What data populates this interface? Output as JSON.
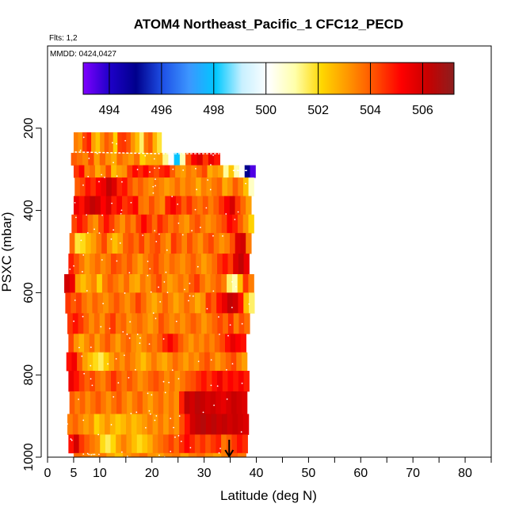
{
  "chart_data": {
    "type": "heatmap",
    "title": "ATOM4 Northeast_Pacific_1 CFC12_PECD",
    "flights_label": "Flts: 1,2",
    "date_label": "MMDD: 0424,0427",
    "xlabel": "Latitude (deg N)",
    "ylabel": "PSXC (mbar)",
    "xlim": [
      0,
      85
    ],
    "ylim": [
      1000,
      0
    ],
    "x_ticks": [
      0,
      5,
      10,
      20,
      30,
      40,
      50,
      60,
      70,
      80
    ],
    "x_minor_ticks": [
      15,
      25,
      35,
      45,
      55,
      65,
      75,
      85
    ],
    "y_ticks": [
      200,
      400,
      600,
      800,
      1000
    ],
    "colorbar": {
      "min": 493,
      "max": 507.2,
      "ticks": [
        494,
        496,
        498,
        500,
        502,
        504,
        506
      ],
      "stops": [
        "#7f00ff",
        "#1e00c8",
        "#00008c",
        "#1e50e6",
        "#3c96ff",
        "#00c8ff",
        "#c8f0ff",
        "#ffffff",
        "#ffffaa",
        "#ffd700",
        "#ff9600",
        "#ff5000",
        "#ff0000",
        "#c80000",
        "#8c1e1e"
      ]
    },
    "marker": {
      "label": "arrow",
      "latitude": 34.8,
      "pressure": 1000
    },
    "layers": [
      {
        "p_top": 210,
        "p_bot": 260,
        "lat_start": 5.0,
        "lat_end": 21.8,
        "values": [
          503.5,
          503.2,
          504.3,
          504.8,
          503.0,
          502.4,
          503.3,
          504.0,
          503.6,
          502.2,
          504.4,
          504.5,
          504.1,
          503.2,
          502.5,
          501.5,
          503.6,
          504.0,
          502.7,
          501.8
        ]
      },
      {
        "p_top": 260,
        "p_bot": 290,
        "lat_start": 4.5,
        "lat_end": 33.0,
        "values": [
          504.0,
          503.7,
          503.4,
          504.3,
          503.0,
          503.9,
          503.2,
          502.8,
          503.8,
          503.4,
          503.1,
          503.7,
          502.2,
          502.8,
          502.9,
          503.0,
          501.3,
          500.0,
          498.0,
          501.0,
          504.2,
          505.3,
          505.8,
          504.5,
          505.5,
          504.9
        ]
      },
      {
        "p_top": 290,
        "p_bot": 320,
        "lat_start": 5.0,
        "lat_end": 39.8,
        "values": [
          504.5,
          505.2,
          503.5,
          503.8,
          502.8,
          503.3,
          504.3,
          502.5,
          503.0,
          503.2,
          504.4,
          505.1,
          504.6,
          505.2,
          504.5,
          504.2,
          504.7,
          505.0,
          504.0,
          503.2,
          503.0,
          503.6,
          503.3,
          503.8,
          504.3,
          502.8,
          503.2,
          502.9,
          501.2,
          502.4,
          501.0,
          500.2,
          495.0,
          493.5
        ]
      },
      {
        "p_top": 320,
        "p_bot": 365,
        "lat_start": 5.2,
        "lat_end": 39.5,
        "values": [
          504.0,
          504.3,
          505.0,
          504.6,
          505.2,
          505.5,
          506.3,
          505.8,
          504.7,
          505.0,
          504.2,
          503.6,
          504.0,
          503.5,
          503.2,
          503.6,
          503.4,
          503.0,
          503.3,
          503.8,
          503.2,
          503.6,
          503.4,
          502.8,
          503.5,
          503.2,
          503.6,
          503.9,
          502.8,
          503.2,
          504.0,
          503.4,
          502.5,
          500.8
        ]
      },
      {
        "p_top": 365,
        "p_bot": 410,
        "lat_start": 5.0,
        "lat_end": 39.0,
        "values": [
          505.5,
          505.0,
          505.8,
          506.3,
          506.0,
          505.2,
          505.8,
          504.8,
          505.3,
          504.5,
          504.8,
          505.2,
          503.7,
          503.5,
          504.2,
          503.6,
          503.3,
          504.8,
          505.3,
          504.7,
          504.0,
          504.6,
          503.9,
          503.6,
          504.1,
          503.5,
          504.0,
          504.6,
          505.3,
          505.9,
          504.5,
          503.8,
          503.0
        ]
      },
      {
        "p_top": 410,
        "p_bot": 455,
        "lat_start": 4.6,
        "lat_end": 39.5,
        "values": [
          504.3,
          505.0,
          504.5,
          503.6,
          503.2,
          504.2,
          505.0,
          504.4,
          503.7,
          503.2,
          504.0,
          503.5,
          504.4,
          505.2,
          504.5,
          503.8,
          504.7,
          504.2,
          503.6,
          504.0,
          503.4,
          503.1,
          503.8,
          504.2,
          503.6,
          503.2,
          503.5,
          503.9,
          504.3,
          505.2,
          504.8,
          504.0,
          503.2,
          502.2
        ]
      },
      {
        "p_top": 455,
        "p_bot": 505,
        "lat_start": 4.2,
        "lat_end": 39.0,
        "values": [
          503.8,
          501.8,
          502.0,
          502.6,
          503.0,
          503.6,
          504.3,
          503.2,
          502.5,
          503.0,
          503.9,
          504.2,
          503.7,
          504.4,
          503.5,
          504.0,
          504.3,
          503.6,
          503.2,
          504.5,
          504.0,
          503.4,
          504.2,
          503.6,
          503.2,
          503.9,
          504.3,
          503.6,
          503.2,
          503.5,
          504.2,
          505.8,
          506.0,
          503.5
        ]
      },
      {
        "p_top": 505,
        "p_bot": 555,
        "lat_start": 4.0,
        "lat_end": 38.6,
        "values": [
          504.8,
          504.2,
          503.6,
          503.0,
          503.4,
          503.8,
          503.3,
          503.6,
          504.3,
          504.0,
          503.6,
          504.1,
          503.5,
          503.0,
          503.5,
          503.9,
          504.3,
          503.7,
          503.3,
          503.8,
          503.5,
          503.2,
          503.6,
          504.0,
          503.5,
          503.0,
          503.4,
          503.8,
          504.5,
          505.0,
          504.4,
          505.8,
          506.3,
          505.5
        ]
      },
      {
        "p_top": 555,
        "p_bot": 600,
        "lat_start": 3.2,
        "lat_end": 39.5,
        "values": [
          506.0,
          505.5,
          503.0,
          502.5,
          503.0,
          503.4,
          502.2,
          503.5,
          504.0,
          503.6,
          503.2,
          503.8,
          503.0,
          502.8,
          503.6,
          503.2,
          503.8,
          504.3,
          503.5,
          503.0,
          503.3,
          503.7,
          503.3,
          504.0,
          504.5,
          503.7,
          503.2,
          503.6,
          504.0,
          503.5,
          501.5,
          501.0,
          502.5,
          504.5,
          503.5
        ]
      },
      {
        "p_top": 600,
        "p_bot": 650,
        "lat_start": 3.4,
        "lat_end": 39.6,
        "values": [
          504.5,
          504.0,
          504.4,
          503.7,
          503.3,
          503.9,
          503.5,
          503.2,
          503.6,
          504.1,
          503.6,
          503.2,
          503.7,
          504.4,
          503.8,
          503.2,
          502.8,
          503.3,
          503.9,
          503.4,
          502.9,
          503.3,
          503.8,
          503.4,
          502.8,
          503.2,
          504.5,
          504.0,
          505.0,
          505.6,
          506.3,
          506.0,
          505.0,
          502.5,
          501.5
        ]
      },
      {
        "p_top": 650,
        "p_bot": 700,
        "lat_start": 3.8,
        "lat_end": 38.7,
        "values": [
          504.5,
          505.0,
          504.5,
          503.9,
          503.3,
          503.8,
          503.2,
          504.0,
          504.5,
          503.6,
          503.9,
          503.2,
          503.5,
          503.8,
          503.4,
          503.0,
          503.4,
          504.2,
          503.7,
          503.3,
          503.6,
          503.2,
          503.6,
          504.0,
          503.6,
          503.1,
          503.5,
          503.9,
          504.3,
          503.8,
          504.6,
          503.5,
          504.2,
          503.7
        ]
      },
      {
        "p_top": 700,
        "p_bot": 745,
        "lat_start": 4.0,
        "lat_end": 38.0,
        "values": [
          504.3,
          503.2,
          502.7,
          503.3,
          503.8,
          503.0,
          503.6,
          504.1,
          503.5,
          503.0,
          503.6,
          503.9,
          503.3,
          503.0,
          503.4,
          503.8,
          503.5,
          504.0,
          504.7,
          505.3,
          504.7,
          504.0,
          503.5,
          503.1,
          503.6,
          503.3,
          503.8,
          503.4,
          503.9,
          504.3,
          505.0,
          505.6,
          505.2,
          505.0
        ]
      },
      {
        "p_top": 745,
        "p_bot": 790,
        "lat_start": 3.6,
        "lat_end": 38.2,
        "values": [
          505.0,
          505.4,
          504.0,
          503.0,
          502.5,
          502.0,
          501.6,
          502.3,
          503.0,
          503.6,
          503.2,
          503.8,
          503.4,
          503.0,
          502.5,
          503.1,
          503.6,
          503.1,
          502.8,
          503.3,
          503.8,
          503.4,
          503.0,
          503.5,
          503.2,
          503.8,
          504.2,
          503.6,
          503.1,
          503.5,
          503.9,
          504.3,
          503.5,
          503.0
        ]
      },
      {
        "p_top": 790,
        "p_bot": 840,
        "lat_start": 4.0,
        "lat_end": 38.6,
        "values": [
          505.5,
          505.0,
          504.4,
          503.9,
          504.3,
          503.7,
          503.4,
          504.0,
          504.6,
          504.0,
          503.6,
          504.1,
          503.7,
          503.2,
          503.5,
          503.9,
          504.2,
          503.8,
          503.3,
          503.7,
          503.2,
          503.6,
          504.0,
          504.2,
          504.6,
          505.0,
          504.5,
          505.0,
          505.5,
          504.8,
          505.2,
          504.9,
          505.3,
          504.8
        ]
      },
      {
        "p_top": 840,
        "p_bot": 895,
        "lat_start": 4.2,
        "lat_end": 38.2,
        "values": [
          504.0,
          503.5,
          503.9,
          503.3,
          503.7,
          504.1,
          503.6,
          503.2,
          503.7,
          504.1,
          503.5,
          503.1,
          503.6,
          504.0,
          503.4,
          503.0,
          503.5,
          503.8,
          503.2,
          503.6,
          503.2,
          504.8,
          506.3,
          506.0,
          506.4,
          506.2,
          505.9,
          506.1,
          505.8,
          505.6,
          505.9,
          506.2,
          506.0,
          505.8
        ]
      },
      {
        "p_top": 895,
        "p_bot": 945,
        "lat_start": 3.8,
        "lat_end": 38.5,
        "values": [
          503.5,
          503.9,
          503.4,
          503.0,
          503.3,
          502.2,
          502.7,
          503.2,
          502.7,
          502.3,
          502.6,
          503.0,
          502.5,
          502.8,
          503.1,
          503.5,
          503.1,
          503.6,
          503.1,
          503.6,
          503.2,
          504.2,
          505.0,
          506.0,
          506.3,
          506.5,
          506.2,
          506.4,
          506.1,
          506.3,
          506.0,
          506.2,
          506.0,
          505.8
        ]
      },
      {
        "p_top": 945,
        "p_bot": 990,
        "lat_start": 4.0,
        "lat_end": 38.3,
        "values": [
          505.0,
          506.0,
          504.5,
          504.0,
          503.6,
          503.3,
          502.0,
          501.6,
          502.1,
          503.0,
          503.5,
          503.0,
          502.5,
          502.0,
          502.4,
          502.8,
          503.4,
          503.7,
          504.0,
          504.4,
          503.8,
          504.6,
          505.2,
          504.7,
          504.2,
          504.6,
          504.1,
          504.5,
          504.8,
          503.6,
          504.0,
          504.5,
          505.0,
          504.6
        ]
      },
      {
        "p_top": 990,
        "p_bot": 1000,
        "lat_start": 5.0,
        "lat_end": 38.0,
        "values": [
          503.8,
          503.5,
          503.2,
          503.6,
          503.0,
          502.5,
          503.2,
          503.5,
          503.8,
          503.2,
          503.0,
          503.4,
          503.6,
          503.0,
          503.5,
          503.8,
          503.3,
          503.0,
          503.5,
          504.0,
          503.6
        ]
      }
    ]
  }
}
